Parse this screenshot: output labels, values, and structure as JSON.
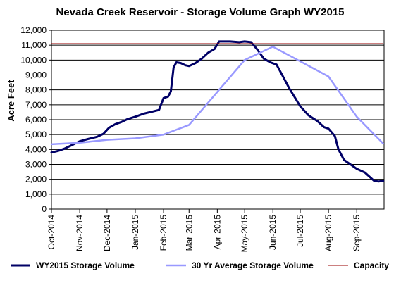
{
  "chart_data": {
    "type": "line",
    "title": "Nevada Creek Reservoir - Storage Volume Graph WY2015",
    "xlabel": "",
    "ylabel": "Acre Feet",
    "ylim": [
      0,
      12000
    ],
    "yticks": [
      "0",
      "1,000",
      "2,000",
      "3,000",
      "4,000",
      "5,000",
      "6,000",
      "7,000",
      "8,000",
      "9,000",
      "10,000",
      "11,000",
      "12,000"
    ],
    "xlim": [
      "2014-10-01",
      "2015-09-30"
    ],
    "xticks": [
      {
        "date": "2014-10-01",
        "label": "Oct-2014"
      },
      {
        "date": "2014-11-01",
        "label": "Nov-2014"
      },
      {
        "date": "2014-12-01",
        "label": "Dec-2014"
      },
      {
        "date": "2015-01-01",
        "label": "Jan-2015"
      },
      {
        "date": "2015-02-01",
        "label": "Feb-2015"
      },
      {
        "date": "2015-03-01",
        "label": "Mar-2015"
      },
      {
        "date": "2015-04-01",
        "label": "Apr-2015"
      },
      {
        "date": "2015-05-01",
        "label": "May-2015"
      },
      {
        "date": "2015-06-01",
        "label": "Jun-2015"
      },
      {
        "date": "2015-07-01",
        "label": "Jul-2015"
      },
      {
        "date": "2015-08-01",
        "label": "Aug-2015"
      },
      {
        "date": "2015-09-01",
        "label": "Sep-2015"
      }
    ],
    "grid": "horizontal",
    "legend_position": "bottom",
    "series": [
      {
        "name": "WY2015 Storage Volume",
        "color": "#000066",
        "points": [
          [
            "2014-10-01",
            3800
          ],
          [
            "2014-10-08",
            3900
          ],
          [
            "2014-10-15",
            4050
          ],
          [
            "2014-10-22",
            4250
          ],
          [
            "2014-11-01",
            4550
          ],
          [
            "2014-11-10",
            4700
          ],
          [
            "2014-11-20",
            4850
          ],
          [
            "2014-11-27",
            5050
          ],
          [
            "2014-12-03",
            5450
          ],
          [
            "2014-12-10",
            5700
          ],
          [
            "2014-12-17",
            5850
          ],
          [
            "2014-12-24",
            6050
          ],
          [
            "2015-01-01",
            6200
          ],
          [
            "2015-01-10",
            6400
          ],
          [
            "2015-01-20",
            6550
          ],
          [
            "2015-01-27",
            6650
          ],
          [
            "2015-02-01",
            7450
          ],
          [
            "2015-02-06",
            7550
          ],
          [
            "2015-02-09",
            7900
          ],
          [
            "2015-02-12",
            9500
          ],
          [
            "2015-02-15",
            9850
          ],
          [
            "2015-02-20",
            9800
          ],
          [
            "2015-02-25",
            9650
          ],
          [
            "2015-03-01",
            9600
          ],
          [
            "2015-03-08",
            9800
          ],
          [
            "2015-03-15",
            10100
          ],
          [
            "2015-03-22",
            10500
          ],
          [
            "2015-03-29",
            10750
          ],
          [
            "2015-04-03",
            11250
          ],
          [
            "2015-04-15",
            11250
          ],
          [
            "2015-04-25",
            11200
          ],
          [
            "2015-05-01",
            11250
          ],
          [
            "2015-05-08",
            11200
          ],
          [
            "2015-05-15",
            10700
          ],
          [
            "2015-05-22",
            10100
          ],
          [
            "2015-05-29",
            9850
          ],
          [
            "2015-06-05",
            9700
          ],
          [
            "2015-06-12",
            8900
          ],
          [
            "2015-06-19",
            8100
          ],
          [
            "2015-06-26",
            7400
          ],
          [
            "2015-07-01",
            6900
          ],
          [
            "2015-07-10",
            6300
          ],
          [
            "2015-07-20",
            5900
          ],
          [
            "2015-07-27",
            5500
          ],
          [
            "2015-08-01",
            5400
          ],
          [
            "2015-08-08",
            4900
          ],
          [
            "2015-08-12",
            4000
          ],
          [
            "2015-08-18",
            3300
          ],
          [
            "2015-08-25",
            3000
          ],
          [
            "2015-09-01",
            2700
          ],
          [
            "2015-09-10",
            2450
          ],
          [
            "2015-09-20",
            1900
          ],
          [
            "2015-09-25",
            1850
          ],
          [
            "2015-09-30",
            1900
          ]
        ]
      },
      {
        "name": "30 Yr Average Storage Volume",
        "color": "#9999ff",
        "points": [
          [
            "2014-10-01",
            4350
          ],
          [
            "2014-11-01",
            4450
          ],
          [
            "2014-12-01",
            4650
          ],
          [
            "2015-01-01",
            4750
          ],
          [
            "2015-02-01",
            5000
          ],
          [
            "2015-03-01",
            5650
          ],
          [
            "2015-05-01",
            10000
          ],
          [
            "2015-06-01",
            10900
          ],
          [
            "2015-08-01",
            8900
          ],
          [
            "2015-09-01",
            6200
          ],
          [
            "2015-09-30",
            4400
          ]
        ]
      },
      {
        "name": "Capacity",
        "color": "#990000",
        "points": [
          [
            "2014-10-01",
            11100
          ],
          [
            "2015-09-30",
            11100
          ]
        ]
      }
    ]
  }
}
